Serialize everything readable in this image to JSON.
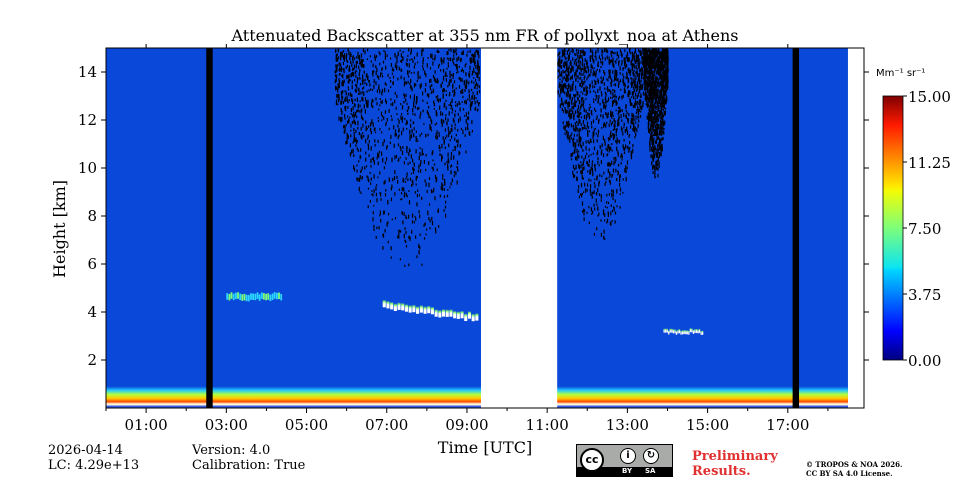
{
  "chart_data": {
    "type": "heatmap",
    "title": "Attenuated Backscatter at 355 nm FR of pollyxt_noa at Athens",
    "xlabel": "Time [UTC]",
    "ylabel": "Height [km]",
    "x_ticks": [
      "01:00",
      "03:00",
      "05:00",
      "07:00",
      "09:00",
      "11:00",
      "13:00",
      "15:00",
      "17:00"
    ],
    "y_ticks": [
      "2",
      "4",
      "6",
      "8",
      "10",
      "12",
      "14"
    ],
    "x_range_hours": [
      0.0,
      18.9
    ],
    "y_range_km": [
      0,
      15
    ],
    "colorbar": {
      "unit": "Mm⁻¹ sr⁻¹",
      "ticks": [
        "0.00",
        "3.75",
        "7.50",
        "11.25",
        "15.00"
      ],
      "range": [
        0,
        15
      ],
      "colormap": "jet"
    },
    "no_data_intervals_hours": [
      [
        2.5,
        2.66
      ],
      [
        9.35,
        11.25
      ],
      [
        17.12,
        17.28
      ]
    ],
    "features": [
      {
        "name": "boundary layer",
        "start_hour": 0.0,
        "end_hour": 18.5,
        "height_km": [
          0.1,
          0.9
        ],
        "max_value": 15
      },
      {
        "name": "cloud layer",
        "start_hour": 6.9,
        "end_hour": 9.3,
        "height_km": [
          3.6,
          4.3
        ]
      },
      {
        "name": "cloud layer",
        "start_hour": 13.9,
        "end_hour": 14.9,
        "height_km": [
          3.1,
          3.5
        ]
      },
      {
        "name": "aerosol layer",
        "start_hour": 3.0,
        "end_hour": 4.4,
        "height_km": [
          4.5,
          5.1
        ]
      }
    ]
  },
  "info": {
    "date": "2026-04-14",
    "lc": "LC: 4.29e+13",
    "version": "Version: 4.0",
    "calibration": "Calibration: True"
  },
  "license": {
    "cc_label": "cc",
    "by_label": "BY",
    "sa_label": "SA",
    "preliminary_line1": "Preliminary",
    "preliminary_line2": "Results.",
    "copyright_line1": "© TROPOS & NOA 2026.",
    "copyright_line2": "CC BY SA 4.0 License."
  },
  "colors": {
    "background_low": "#0a48d9",
    "no_data_black": "#000000",
    "gap_white": "#ffffff",
    "preliminary_red": "#e03030"
  }
}
